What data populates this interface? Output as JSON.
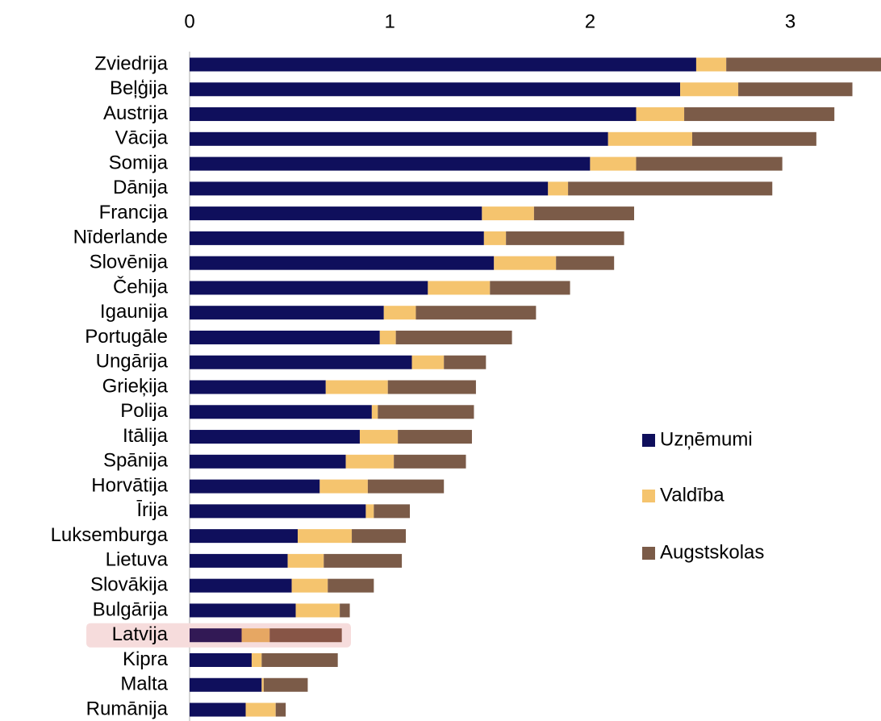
{
  "chart_data": {
    "type": "stacked-barh",
    "categories": [
      "Zviedrija",
      "Beļģija",
      "Austrija",
      "Vācija",
      "Somija",
      "Dānija",
      "Francija",
      "Nīderlande",
      "Slovēnija",
      "Čehija",
      "Igaunija",
      "Portugāle",
      "Ungārija",
      "Grieķija",
      "Polija",
      "Itālija",
      "Spānija",
      "Horvātija",
      "Īrija",
      "Luksemburga",
      "Lietuva",
      "Slovākija",
      "Bulgārija",
      "Latvija",
      "Kipra",
      "Malta",
      "Rumānija"
    ],
    "series": [
      {
        "name": "Uzņēmumi",
        "color": "#0f0f5c",
        "values": [
          2.53,
          2.45,
          2.23,
          2.09,
          2.0,
          1.79,
          1.46,
          1.47,
          1.52,
          1.19,
          0.97,
          0.95,
          1.11,
          0.68,
          0.91,
          0.85,
          0.78,
          0.65,
          0.88,
          0.54,
          0.49,
          0.51,
          0.53,
          0.26,
          0.31,
          0.36,
          0.28
        ]
      },
      {
        "name": "Valdība",
        "color": "#f5c46e",
        "values": [
          0.15,
          0.29,
          0.24,
          0.42,
          0.23,
          0.1,
          0.26,
          0.11,
          0.31,
          0.31,
          0.16,
          0.08,
          0.16,
          0.31,
          0.03,
          0.19,
          0.24,
          0.24,
          0.04,
          0.27,
          0.18,
          0.18,
          0.22,
          0.14,
          0.05,
          0.01,
          0.15
        ]
      },
      {
        "name": "Augstskolas",
        "color": "#7b5b48",
        "values": [
          0.8,
          0.57,
          0.75,
          0.62,
          0.73,
          1.02,
          0.5,
          0.59,
          0.29,
          0.4,
          0.6,
          0.58,
          0.21,
          0.44,
          0.48,
          0.37,
          0.36,
          0.38,
          0.18,
          0.27,
          0.39,
          0.23,
          0.05,
          0.36,
          0.38,
          0.22,
          0.05
        ]
      }
    ],
    "xlim": [
      0,
      3.45
    ],
    "xticks": [
      0,
      1,
      2,
      3
    ],
    "legend": "right",
    "highlight_index": 23
  }
}
